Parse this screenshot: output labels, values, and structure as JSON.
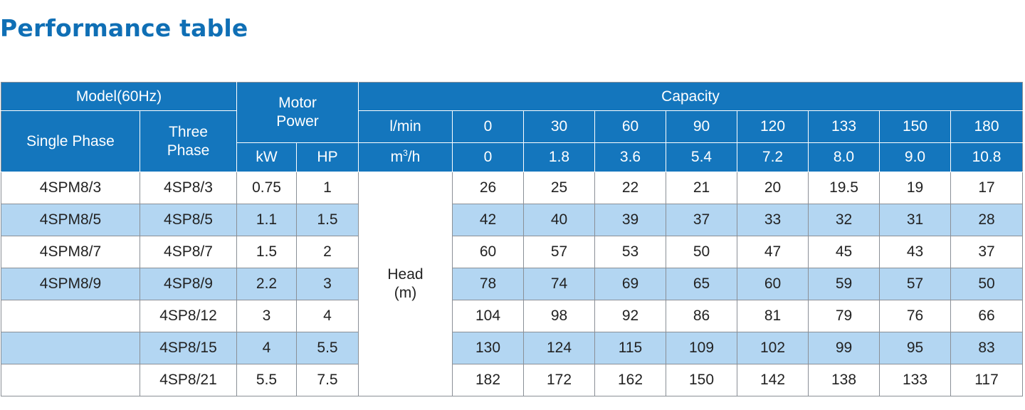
{
  "title": "Performance table",
  "colors": {
    "title": "#0f6fb5",
    "header_bg": "#1476bd",
    "header_text": "#ffffff",
    "alt_row_bg": "#b3d6f2",
    "border": "#8a8f96"
  },
  "header": {
    "model": "Model(60Hz)",
    "single_phase": "Single Phase",
    "three_phase_line1": "Three",
    "three_phase_line2": "Phase",
    "motor_line1": "Motor",
    "motor_line2": "Power",
    "kw": "kW",
    "hp": "HP",
    "capacity": "Capacity",
    "lmin": "l/min",
    "m3h_base": "m",
    "m3h_sup": "3",
    "m3h_tail": "/h",
    "lmin_values": [
      "0",
      "30",
      "60",
      "90",
      "120",
      "133",
      "150",
      "180"
    ],
    "m3h_values": [
      "0",
      "1.8",
      "3.6",
      "5.4",
      "7.2",
      "8.0",
      "9.0",
      "10.8"
    ]
  },
  "head_label_line1": "Head",
  "head_label_line2": "(m)",
  "rows": [
    {
      "single": "4SPM8/3",
      "three": "4SP8/3",
      "kw": "0.75",
      "hp": "1",
      "heads": [
        "26",
        "25",
        "22",
        "21",
        "20",
        "19.5",
        "19",
        "17"
      ]
    },
    {
      "single": "4SPM8/5",
      "three": "4SP8/5",
      "kw": "1.1",
      "hp": "1.5",
      "heads": [
        "42",
        "40",
        "39",
        "37",
        "33",
        "32",
        "31",
        "28"
      ]
    },
    {
      "single": "4SPM8/7",
      "three": "4SP8/7",
      "kw": "1.5",
      "hp": "2",
      "heads": [
        "60",
        "57",
        "53",
        "50",
        "47",
        "45",
        "43",
        "37"
      ]
    },
    {
      "single": "4SPM8/9",
      "three": "4SP8/9",
      "kw": "2.2",
      "hp": "3",
      "heads": [
        "78",
        "74",
        "69",
        "65",
        "60",
        "59",
        "57",
        "50"
      ]
    },
    {
      "single": "",
      "three": "4SP8/12",
      "kw": "3",
      "hp": "4",
      "heads": [
        "104",
        "98",
        "92",
        "86",
        "81",
        "79",
        "76",
        "66"
      ]
    },
    {
      "single": "",
      "three": "4SP8/15",
      "kw": "4",
      "hp": "5.5",
      "heads": [
        "130",
        "124",
        "115",
        "109",
        "102",
        "99",
        "95",
        "83"
      ]
    },
    {
      "single": "",
      "three": "4SP8/21",
      "kw": "5.5",
      "hp": "7.5",
      "heads": [
        "182",
        "172",
        "162",
        "150",
        "142",
        "138",
        "133",
        "117"
      ]
    }
  ]
}
